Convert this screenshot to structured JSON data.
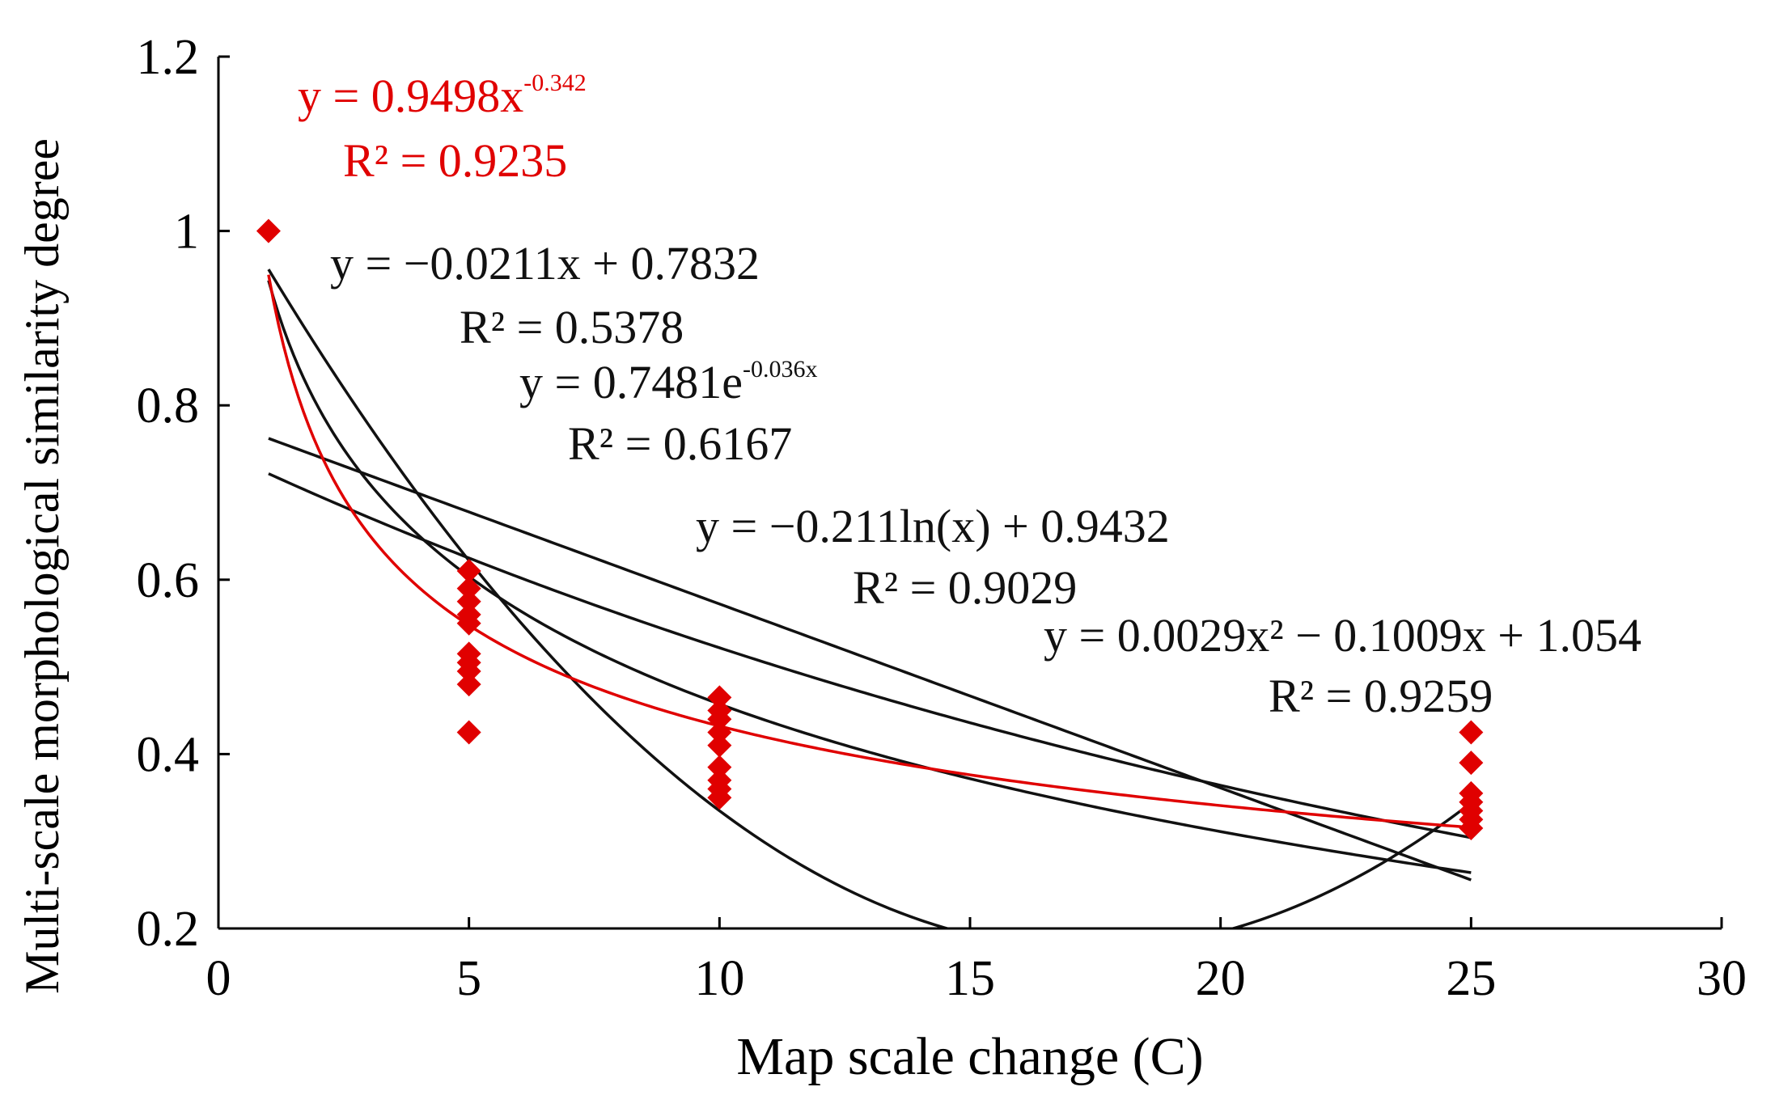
{
  "chart_data": {
    "type": "scatter",
    "xlabel": "Map scale change (C)",
    "ylabel": "Multi-scale morphological similarity degree",
    "xlim": [
      0,
      30
    ],
    "ylim": [
      0.2,
      1.2
    ],
    "xticks": [
      "0",
      "5",
      "10",
      "15",
      "20",
      "25",
      "30"
    ],
    "yticks": [
      "0.2",
      "0.4",
      "0.6",
      "0.8",
      "1",
      "1.2"
    ],
    "colors": {
      "points": "#e00000",
      "power_fit": "#e00000",
      "other_fits": "#111111",
      "axis": "#000000"
    },
    "points": [
      {
        "x": 1,
        "y": 1.0
      },
      {
        "x": 5,
        "y": 0.61
      },
      {
        "x": 5,
        "y": 0.59
      },
      {
        "x": 5,
        "y": 0.575
      },
      {
        "x": 5,
        "y": 0.56
      },
      {
        "x": 5,
        "y": 0.55
      },
      {
        "x": 5,
        "y": 0.515
      },
      {
        "x": 5,
        "y": 0.505
      },
      {
        "x": 5,
        "y": 0.495
      },
      {
        "x": 5,
        "y": 0.48
      },
      {
        "x": 5,
        "y": 0.425
      },
      {
        "x": 10,
        "y": 0.465
      },
      {
        "x": 10,
        "y": 0.45
      },
      {
        "x": 10,
        "y": 0.44
      },
      {
        "x": 10,
        "y": 0.425
      },
      {
        "x": 10,
        "y": 0.41
      },
      {
        "x": 10,
        "y": 0.385
      },
      {
        "x": 10,
        "y": 0.37
      },
      {
        "x": 10,
        "y": 0.36
      },
      {
        "x": 10,
        "y": 0.35
      },
      {
        "x": 25,
        "y": 0.425
      },
      {
        "x": 25,
        "y": 0.39
      },
      {
        "x": 25,
        "y": 0.355
      },
      {
        "x": 25,
        "y": 0.345
      },
      {
        "x": 25,
        "y": 0.335
      },
      {
        "x": 25,
        "y": 0.325
      },
      {
        "x": 25,
        "y": 0.315
      }
    ],
    "fits": [
      {
        "name": "power",
        "model": "power",
        "a": 0.9498,
        "b": -0.342,
        "color": "#e00000",
        "equation": {
          "base": "y = 0.9498x",
          "sup": "-0.342"
        },
        "r2": "R² = 0.9235"
      },
      {
        "name": "linear",
        "model": "linear",
        "a": -0.0211,
        "b": 0.7832,
        "color": "#111111",
        "equation": {
          "base": "y = −0.0211x + 0.7832",
          "sup": ""
        },
        "r2": "R² = 0.5378"
      },
      {
        "name": "exponential",
        "model": "exponential",
        "a": 0.7481,
        "b": -0.036,
        "color": "#111111",
        "equation": {
          "base": "y = 0.7481e",
          "sup": "-0.036x"
        },
        "r2": "R² = 0.6167"
      },
      {
        "name": "logarithmic",
        "model": "logarithmic",
        "a": -0.211,
        "b": 0.9432,
        "color": "#111111",
        "equation": {
          "base": "y = −0.211ln(x) + 0.9432",
          "sup": ""
        },
        "r2": "R² = 0.9029"
      },
      {
        "name": "polynomial",
        "model": "polynomial",
        "a": 0.0029,
        "b": -0.1009,
        "c": 1.054,
        "color": "#111111",
        "equation": {
          "base": "y = 0.0029x² − 0.1009x + 1.054",
          "sup": ""
        },
        "r2": "R² = 0.9259"
      }
    ]
  }
}
